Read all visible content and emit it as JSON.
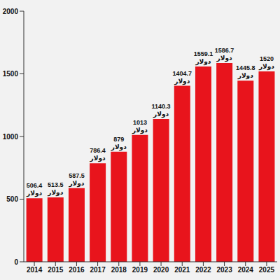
{
  "chart_data": {
    "type": "bar",
    "categories": [
      "2014",
      "2015",
      "2016",
      "2017",
      "2018",
      "2019",
      "2020",
      "2021",
      "2022",
      "2023",
      "2024",
      "2025"
    ],
    "values": [
      506.4,
      513.5,
      587.5,
      786.4,
      879,
      1013,
      1140.3,
      1404.7,
      1559.1,
      1586.7,
      1445.8,
      1520
    ],
    "value_labels": [
      "506.4 دولار",
      "513.5 دولار",
      "587.5 دولار",
      "786.4 دولار",
      "879 دولار",
      "1013 دولار",
      "1140.3 دولار",
      "1404.7 دولار",
      "1559.1 دولار",
      "1586.7 دولار",
      "1445.8 دولار",
      "1520 دولار"
    ],
    "color": "#e8141c",
    "ylim": [
      0,
      2000
    ],
    "yticks": [
      0,
      500,
      1000,
      1500,
      2000
    ],
    "grid": false,
    "data_labels": true
  }
}
